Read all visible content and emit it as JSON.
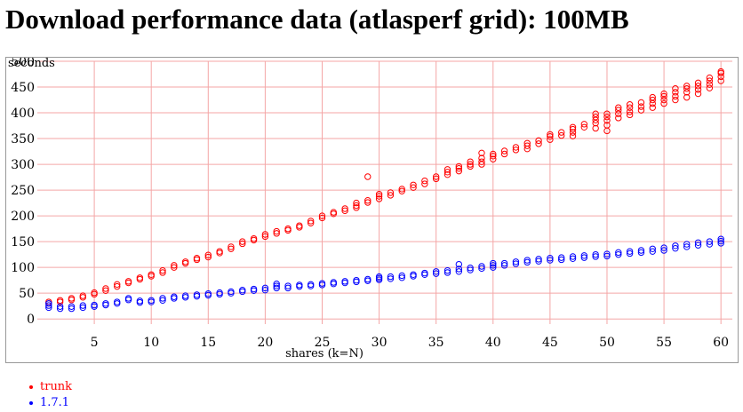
{
  "page": {
    "title": "Download performance data (atlasperf grid): 100MB"
  },
  "chart_data": {
    "type": "scatter",
    "xlabel": "shares (k=N)",
    "ylabel": "seconds",
    "xlim": [
      0,
      61
    ],
    "ylim": [
      -10,
      500
    ],
    "xticks": [
      5,
      10,
      15,
      20,
      25,
      30,
      35,
      40,
      45,
      50,
      55,
      60
    ],
    "yticks": [
      0,
      50,
      100,
      150,
      200,
      250,
      300,
      350,
      400,
      450,
      500
    ],
    "grid": true,
    "grid_color": "#f4a6a6",
    "legend_position": "below-left",
    "series": [
      {
        "name": "trunk",
        "color": "#ff0000",
        "points": [
          [
            1,
            30
          ],
          [
            1,
            33
          ],
          [
            2,
            33
          ],
          [
            2,
            36
          ],
          [
            3,
            37
          ],
          [
            3,
            40
          ],
          [
            4,
            42
          ],
          [
            4,
            45
          ],
          [
            5,
            48
          ],
          [
            5,
            51
          ],
          [
            6,
            55
          ],
          [
            6,
            59
          ],
          [
            7,
            63
          ],
          [
            7,
            67
          ],
          [
            8,
            70
          ],
          [
            8,
            73
          ],
          [
            9,
            77
          ],
          [
            9,
            80
          ],
          [
            10,
            83
          ],
          [
            10,
            86
          ],
          [
            11,
            90
          ],
          [
            11,
            94
          ],
          [
            12,
            100
          ],
          [
            12,
            104
          ],
          [
            13,
            108
          ],
          [
            13,
            111
          ],
          [
            14,
            115
          ],
          [
            14,
            118
          ],
          [
            15,
            120
          ],
          [
            15,
            124
          ],
          [
            16,
            128
          ],
          [
            16,
            131
          ],
          [
            17,
            136
          ],
          [
            17,
            140
          ],
          [
            18,
            146
          ],
          [
            18,
            150
          ],
          [
            19,
            153
          ],
          [
            19,
            156
          ],
          [
            20,
            160
          ],
          [
            20,
            164
          ],
          [
            21,
            166
          ],
          [
            21,
            170
          ],
          [
            22,
            172
          ],
          [
            22,
            175
          ],
          [
            23,
            178
          ],
          [
            23,
            181
          ],
          [
            24,
            186
          ],
          [
            24,
            190
          ],
          [
            25,
            196
          ],
          [
            25,
            200
          ],
          [
            26,
            204
          ],
          [
            26,
            207
          ],
          [
            27,
            210
          ],
          [
            27,
            214
          ],
          [
            28,
            216
          ],
          [
            28,
            220
          ],
          [
            28,
            225
          ],
          [
            29,
            276
          ],
          [
            29,
            226
          ],
          [
            29,
            230
          ],
          [
            30,
            233
          ],
          [
            30,
            238
          ],
          [
            30,
            242
          ],
          [
            31,
            240
          ],
          [
            31,
            245
          ],
          [
            32,
            248
          ],
          [
            32,
            252
          ],
          [
            33,
            255
          ],
          [
            33,
            260
          ],
          [
            34,
            262
          ],
          [
            34,
            268
          ],
          [
            35,
            272
          ],
          [
            35,
            276
          ],
          [
            36,
            280
          ],
          [
            36,
            285
          ],
          [
            36,
            290
          ],
          [
            37,
            287
          ],
          [
            37,
            292
          ],
          [
            37,
            296
          ],
          [
            38,
            296
          ],
          [
            38,
            300
          ],
          [
            38,
            305
          ],
          [
            39,
            300
          ],
          [
            39,
            305
          ],
          [
            39,
            312
          ],
          [
            39,
            322
          ],
          [
            40,
            310
          ],
          [
            40,
            316
          ],
          [
            40,
            320
          ],
          [
            41,
            320
          ],
          [
            41,
            326
          ],
          [
            42,
            328
          ],
          [
            42,
            333
          ],
          [
            43,
            330
          ],
          [
            43,
            336
          ],
          [
            43,
            341
          ],
          [
            44,
            340
          ],
          [
            44,
            346
          ],
          [
            45,
            348
          ],
          [
            45,
            354
          ],
          [
            45,
            358
          ],
          [
            46,
            356
          ],
          [
            46,
            362
          ],
          [
            47,
            355
          ],
          [
            47,
            362
          ],
          [
            47,
            368
          ],
          [
            47,
            372
          ],
          [
            48,
            372
          ],
          [
            48,
            378
          ],
          [
            49,
            370
          ],
          [
            49,
            380
          ],
          [
            49,
            386
          ],
          [
            49,
            392
          ],
          [
            49,
            398
          ],
          [
            50,
            365
          ],
          [
            50,
            376
          ],
          [
            50,
            385
          ],
          [
            50,
            392
          ],
          [
            50,
            398
          ],
          [
            51,
            390
          ],
          [
            51,
            398
          ],
          [
            51,
            405
          ],
          [
            51,
            410
          ],
          [
            52,
            396
          ],
          [
            52,
            402
          ],
          [
            52,
            410
          ],
          [
            52,
            416
          ],
          [
            53,
            405
          ],
          [
            53,
            412
          ],
          [
            53,
            420
          ],
          [
            54,
            410
          ],
          [
            54,
            418
          ],
          [
            54,
            425
          ],
          [
            54,
            430
          ],
          [
            55,
            418
          ],
          [
            55,
            425
          ],
          [
            55,
            432
          ],
          [
            55,
            437
          ],
          [
            56,
            425
          ],
          [
            56,
            432
          ],
          [
            56,
            440
          ],
          [
            56,
            447
          ],
          [
            57,
            430
          ],
          [
            57,
            440
          ],
          [
            57,
            447
          ],
          [
            57,
            452
          ],
          [
            58,
            437
          ],
          [
            58,
            445
          ],
          [
            58,
            452
          ],
          [
            58,
            458
          ],
          [
            59,
            448
          ],
          [
            59,
            455
          ],
          [
            59,
            462
          ],
          [
            59,
            468
          ],
          [
            60,
            462
          ],
          [
            60,
            470
          ],
          [
            60,
            477
          ],
          [
            60,
            480
          ]
        ]
      },
      {
        "name": "1.7.1",
        "color": "#0000ff",
        "points": [
          [
            1,
            22
          ],
          [
            1,
            26
          ],
          [
            1,
            30
          ],
          [
            2,
            20
          ],
          [
            2,
            24
          ],
          [
            3,
            20
          ],
          [
            3,
            24
          ],
          [
            4,
            22
          ],
          [
            4,
            26
          ],
          [
            5,
            24
          ],
          [
            5,
            27
          ],
          [
            6,
            27
          ],
          [
            6,
            30
          ],
          [
            7,
            30
          ],
          [
            7,
            33
          ],
          [
            8,
            37
          ],
          [
            8,
            40
          ],
          [
            9,
            32
          ],
          [
            9,
            35
          ],
          [
            10,
            33
          ],
          [
            10,
            36
          ],
          [
            11,
            36
          ],
          [
            11,
            40
          ],
          [
            12,
            40
          ],
          [
            12,
            43
          ],
          [
            13,
            42
          ],
          [
            13,
            45
          ],
          [
            14,
            44
          ],
          [
            14,
            47
          ],
          [
            15,
            46
          ],
          [
            15,
            49
          ],
          [
            16,
            48
          ],
          [
            16,
            51
          ],
          [
            17,
            50
          ],
          [
            17,
            53
          ],
          [
            18,
            53
          ],
          [
            18,
            56
          ],
          [
            19,
            55
          ],
          [
            19,
            58
          ],
          [
            20,
            56
          ],
          [
            20,
            60
          ],
          [
            21,
            60
          ],
          [
            21,
            64
          ],
          [
            21,
            68
          ],
          [
            22,
            60
          ],
          [
            22,
            64
          ],
          [
            23,
            63
          ],
          [
            23,
            66
          ],
          [
            24,
            64
          ],
          [
            24,
            67
          ],
          [
            25,
            66
          ],
          [
            25,
            69
          ],
          [
            26,
            68
          ],
          [
            26,
            71
          ],
          [
            27,
            70
          ],
          [
            27,
            73
          ],
          [
            28,
            72
          ],
          [
            28,
            75
          ],
          [
            29,
            74
          ],
          [
            29,
            77
          ],
          [
            30,
            76
          ],
          [
            30,
            79
          ],
          [
            30,
            82
          ],
          [
            31,
            78
          ],
          [
            31,
            82
          ],
          [
            32,
            80
          ],
          [
            32,
            84
          ],
          [
            33,
            83
          ],
          [
            33,
            86
          ],
          [
            34,
            86
          ],
          [
            34,
            89
          ],
          [
            35,
            88
          ],
          [
            35,
            92
          ],
          [
            36,
            90
          ],
          [
            36,
            94
          ],
          [
            37,
            92
          ],
          [
            37,
            97
          ],
          [
            37,
            106
          ],
          [
            38,
            95
          ],
          [
            38,
            99
          ],
          [
            39,
            98
          ],
          [
            39,
            102
          ],
          [
            40,
            100
          ],
          [
            40,
            104
          ],
          [
            40,
            108
          ],
          [
            41,
            104
          ],
          [
            41,
            108
          ],
          [
            42,
            107
          ],
          [
            42,
            111
          ],
          [
            43,
            110
          ],
          [
            43,
            114
          ],
          [
            44,
            112
          ],
          [
            44,
            116
          ],
          [
            45,
            114
          ],
          [
            45,
            118
          ],
          [
            46,
            115
          ],
          [
            46,
            119
          ],
          [
            47,
            117
          ],
          [
            47,
            121
          ],
          [
            48,
            119
          ],
          [
            48,
            123
          ],
          [
            49,
            121
          ],
          [
            49,
            125
          ],
          [
            50,
            122
          ],
          [
            50,
            126
          ],
          [
            51,
            125
          ],
          [
            51,
            129
          ],
          [
            52,
            127
          ],
          [
            52,
            131
          ],
          [
            53,
            129
          ],
          [
            53,
            133
          ],
          [
            54,
            131
          ],
          [
            54,
            136
          ],
          [
            55,
            133
          ],
          [
            55,
            138
          ],
          [
            56,
            137
          ],
          [
            56,
            142
          ],
          [
            57,
            140
          ],
          [
            57,
            145
          ],
          [
            58,
            143
          ],
          [
            58,
            148
          ],
          [
            59,
            145
          ],
          [
            59,
            150
          ],
          [
            60,
            147
          ],
          [
            60,
            151
          ],
          [
            60,
            155
          ]
        ]
      }
    ]
  }
}
